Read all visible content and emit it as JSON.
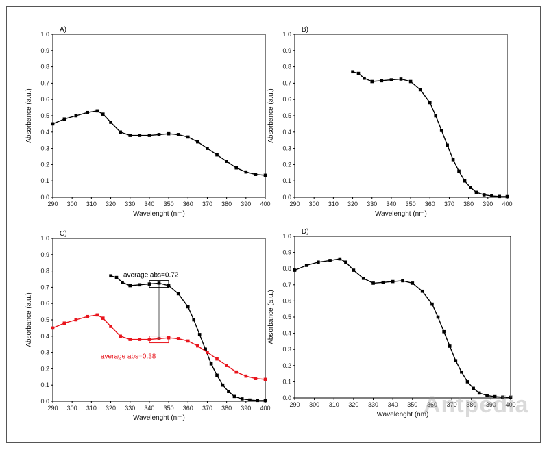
{
  "chart_data": [
    {
      "type": "scatter",
      "panel_label": "A)",
      "xlabel": "Wavelenght (nm)",
      "ylabel": "Absorbance (a.u.)",
      "xlim": [
        290,
        400
      ],
      "ylim": [
        0.0,
        1.0
      ],
      "xticks": [
        "290",
        "300",
        "310",
        "320",
        "330",
        "340",
        "350",
        "360",
        "370",
        "380",
        "390",
        "400"
      ],
      "yticks": [
        "0.0",
        "0.1",
        "0.2",
        "0.3",
        "0.4",
        "0.5",
        "0.6",
        "0.7",
        "0.8",
        "0.9",
        "1.0"
      ],
      "series": [
        {
          "color": "#000000",
          "points": [
            [
              290,
              0.45
            ],
            [
              296,
              0.48
            ],
            [
              302,
              0.5
            ],
            [
              308,
              0.52
            ],
            [
              313,
              0.53
            ],
            [
              316,
              0.51
            ],
            [
              320,
              0.46
            ],
            [
              325,
              0.4
            ],
            [
              330,
              0.38
            ],
            [
              335,
              0.38
            ],
            [
              340,
              0.38
            ],
            [
              345,
              0.385
            ],
            [
              350,
              0.39
            ],
            [
              355,
              0.385
            ],
            [
              360,
              0.37
            ],
            [
              365,
              0.34
            ],
            [
              370,
              0.3
            ],
            [
              375,
              0.26
            ],
            [
              380,
              0.22
            ],
            [
              385,
              0.18
            ],
            [
              390,
              0.155
            ],
            [
              395,
              0.14
            ],
            [
              400,
              0.135
            ]
          ]
        }
      ]
    },
    {
      "type": "scatter",
      "panel_label": "B)",
      "xlabel": "Wavelenght (nm)",
      "ylabel": "Absorbance (a.u.)",
      "xlim": [
        290,
        400
      ],
      "ylim": [
        0.0,
        1.0
      ],
      "xticks": [
        "290",
        "300",
        "310",
        "320",
        "330",
        "340",
        "350",
        "360",
        "370",
        "380",
        "390",
        "400"
      ],
      "yticks": [
        "0.0",
        "0.1",
        "0.2",
        "0.3",
        "0.4",
        "0.5",
        "0.6",
        "0.7",
        "0.8",
        "0.9",
        "1.0"
      ],
      "series": [
        {
          "color": "#000000",
          "points": [
            [
              320,
              0.77
            ],
            [
              323,
              0.76
            ],
            [
              326,
              0.73
            ],
            [
              330,
              0.71
            ],
            [
              335,
              0.715
            ],
            [
              340,
              0.72
            ],
            [
              345,
              0.725
            ],
            [
              350,
              0.71
            ],
            [
              355,
              0.66
            ],
            [
              360,
              0.58
            ],
            [
              363,
              0.5
            ],
            [
              366,
              0.41
            ],
            [
              369,
              0.32
            ],
            [
              372,
              0.23
            ],
            [
              375,
              0.16
            ],
            [
              378,
              0.1
            ],
            [
              381,
              0.06
            ],
            [
              384,
              0.03
            ],
            [
              388,
              0.015
            ],
            [
              392,
              0.008
            ],
            [
              396,
              0.005
            ],
            [
              400,
              0.004
            ]
          ]
        }
      ]
    },
    {
      "type": "scatter",
      "panel_label": "C)",
      "xlabel": "Wavelenght (nm)",
      "ylabel": "Absorbance (a.u.)",
      "xlim": [
        290,
        400
      ],
      "ylim": [
        0.0,
        1.0
      ],
      "xticks": [
        "290",
        "300",
        "310",
        "320",
        "330",
        "340",
        "350",
        "360",
        "370",
        "380",
        "390",
        "400"
      ],
      "yticks": [
        "0.0",
        "0.1",
        "0.2",
        "0.3",
        "0.4",
        "0.5",
        "0.6",
        "0.7",
        "0.8",
        "0.9",
        "1.0"
      ],
      "annotations": [
        {
          "text": "average abs=0.72",
          "color": "#000000",
          "value": 0.72,
          "x": 345
        },
        {
          "text": "average abs=0.38",
          "color": "#e8141c",
          "value": 0.38,
          "x": 345
        }
      ],
      "series": [
        {
          "color": "#000000",
          "points": [
            [
              320,
              0.77
            ],
            [
              323,
              0.76
            ],
            [
              326,
              0.73
            ],
            [
              330,
              0.71
            ],
            [
              335,
              0.715
            ],
            [
              340,
              0.72
            ],
            [
              345,
              0.725
            ],
            [
              350,
              0.71
            ],
            [
              355,
              0.66
            ],
            [
              360,
              0.58
            ],
            [
              363,
              0.5
            ],
            [
              366,
              0.41
            ],
            [
              369,
              0.32
            ],
            [
              372,
              0.23
            ],
            [
              375,
              0.16
            ],
            [
              378,
              0.1
            ],
            [
              381,
              0.06
            ],
            [
              384,
              0.03
            ],
            [
              388,
              0.015
            ],
            [
              392,
              0.008
            ],
            [
              396,
              0.005
            ],
            [
              400,
              0.004
            ]
          ]
        },
        {
          "color": "#e8141c",
          "points": [
            [
              290,
              0.45
            ],
            [
              296,
              0.48
            ],
            [
              302,
              0.5
            ],
            [
              308,
              0.52
            ],
            [
              313,
              0.53
            ],
            [
              316,
              0.51
            ],
            [
              320,
              0.46
            ],
            [
              325,
              0.4
            ],
            [
              330,
              0.38
            ],
            [
              335,
              0.38
            ],
            [
              340,
              0.38
            ],
            [
              345,
              0.385
            ],
            [
              350,
              0.39
            ],
            [
              355,
              0.385
            ],
            [
              360,
              0.37
            ],
            [
              365,
              0.34
            ],
            [
              370,
              0.3
            ],
            [
              375,
              0.26
            ],
            [
              380,
              0.22
            ],
            [
              385,
              0.18
            ],
            [
              390,
              0.155
            ],
            [
              395,
              0.14
            ],
            [
              400,
              0.135
            ]
          ]
        }
      ]
    },
    {
      "type": "scatter",
      "panel_label": "D)",
      "xlabel": "Wavelenght (nm)",
      "ylabel": "Absorbance (a.u.)",
      "xlim": [
        290,
        400
      ],
      "ylim": [
        0.0,
        1.0
      ],
      "xticks": [
        "290",
        "300",
        "310",
        "320",
        "330",
        "340",
        "350",
        "360",
        "370",
        "380",
        "390",
        "400"
      ],
      "yticks": [
        "0.0",
        "0.1",
        "0.2",
        "0.3",
        "0.4",
        "0.5",
        "0.6",
        "0.7",
        "0.8",
        "0.9",
        "1.0"
      ],
      "series": [
        {
          "color": "#000000",
          "points": [
            [
              290,
              0.79
            ],
            [
              296,
              0.82
            ],
            [
              302,
              0.84
            ],
            [
              308,
              0.85
            ],
            [
              313,
              0.86
            ],
            [
              316,
              0.84
            ],
            [
              320,
              0.79
            ],
            [
              325,
              0.74
            ],
            [
              330,
              0.71
            ],
            [
              335,
              0.715
            ],
            [
              340,
              0.72
            ],
            [
              345,
              0.725
            ],
            [
              350,
              0.71
            ],
            [
              355,
              0.66
            ],
            [
              360,
              0.58
            ],
            [
              363,
              0.5
            ],
            [
              366,
              0.41
            ],
            [
              369,
              0.32
            ],
            [
              372,
              0.23
            ],
            [
              375,
              0.16
            ],
            [
              378,
              0.1
            ],
            [
              381,
              0.06
            ],
            [
              384,
              0.03
            ],
            [
              388,
              0.015
            ],
            [
              392,
              0.008
            ],
            [
              396,
              0.005
            ],
            [
              400,
              0.004
            ]
          ]
        }
      ]
    }
  ],
  "watermark": "Antpedia"
}
